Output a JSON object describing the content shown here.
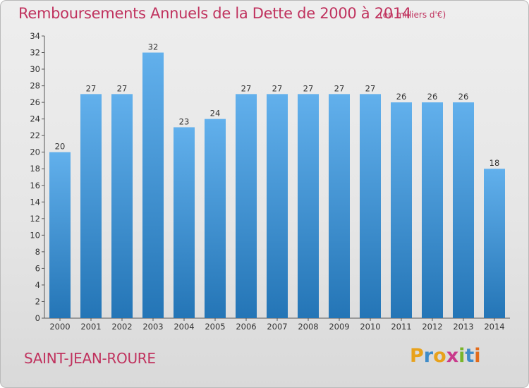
{
  "title": "Remboursements Annuels de la Dette de 2000 à 2014",
  "unit_label": "(en milliers d'€)",
  "commune": "SAINT-JEAN-ROURE",
  "logo": {
    "letters": [
      "P",
      "r",
      "o",
      "x",
      "i",
      "t",
      "i"
    ],
    "colors": [
      "#e8a21b",
      "#3f8cc9",
      "#e8a21b",
      "#c93b8c",
      "#79b52a",
      "#3f8cc9",
      "#e36b1a"
    ]
  },
  "colors": {
    "accent": "#c0325e",
    "bar_top": "#62b0ec",
    "bar_bottom": "#2475b6"
  },
  "chart_data": {
    "type": "bar",
    "title": "Remboursements Annuels de la Dette de 2000 à 2014",
    "xlabel": "",
    "ylabel": "",
    "categories": [
      "2000",
      "2001",
      "2002",
      "2003",
      "2004",
      "2005",
      "2006",
      "2007",
      "2008",
      "2009",
      "2010",
      "2011",
      "2012",
      "2013",
      "2014"
    ],
    "values": [
      20,
      27,
      27,
      32,
      23,
      24,
      27,
      27,
      27,
      27,
      27,
      26,
      26,
      26,
      18
    ],
    "ylim": [
      0,
      34
    ],
    "yticks": [
      0,
      2,
      4,
      6,
      8,
      10,
      12,
      14,
      16,
      18,
      20,
      22,
      24,
      26,
      28,
      30,
      32,
      34
    ],
    "grid": false
  }
}
